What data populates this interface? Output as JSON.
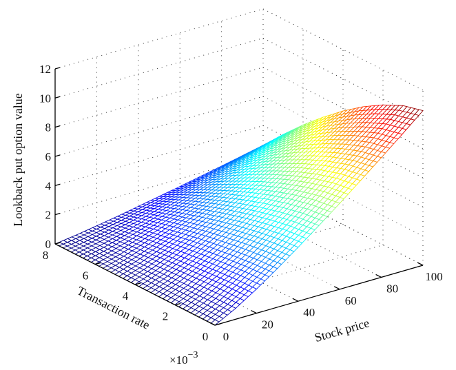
{
  "chart_data": {
    "type": "surface-mesh",
    "title": "",
    "xlabel": "Stock price",
    "ylabel": "Transaction rate",
    "zlabel": "Lookback put option value",
    "y_multiplier_label": "×10",
    "y_multiplier_exponent": "−3",
    "xlim": [
      0,
      100
    ],
    "ylim": [
      0,
      0.008
    ],
    "zlim": [
      0,
      12
    ],
    "x_ticks": [
      "0",
      "20",
      "40",
      "60",
      "80",
      "100"
    ],
    "x_tick_values": [
      0,
      20,
      40,
      60,
      80,
      100
    ],
    "y_ticks": [
      "0",
      "2",
      "4",
      "6",
      "8"
    ],
    "y_tick_values": [
      0,
      2,
      4,
      6,
      8
    ],
    "z_ticks": [
      "0",
      "2",
      "4",
      "6",
      "8",
      "10",
      "12"
    ],
    "z_tick_values": [
      0,
      2,
      4,
      6,
      8,
      10,
      12
    ],
    "grid": true,
    "colormap": "jet",
    "stock_price": [
      0,
      10,
      20,
      30,
      40,
      50,
      60,
      70,
      80,
      90,
      100
    ],
    "transaction_rate_e3": [
      0,
      1,
      2,
      3,
      4,
      5,
      6,
      7,
      8
    ],
    "values": [
      [
        0,
        0.75,
        1.66,
        2.65,
        3.7,
        4.78,
        5.89,
        7.04,
        8.2,
        9.39,
        10.6
      ],
      [
        0,
        0.73,
        1.61,
        2.56,
        3.58,
        4.62,
        5.7,
        6.81,
        7.93,
        9.08,
        10.25
      ],
      [
        0,
        0.68,
        1.5,
        2.4,
        3.35,
        4.33,
        5.34,
        6.38,
        7.43,
        8.51,
        9.6
      ],
      [
        0,
        0.62,
        1.37,
        2.19,
        3.06,
        3.96,
        4.88,
        5.83,
        6.79,
        7.77,
        8.78
      ],
      [
        0,
        0.55,
        1.22,
        1.95,
        2.72,
        3.51,
        4.33,
        5.17,
        6.03,
        6.9,
        7.79
      ],
      [
        0,
        0.47,
        1.04,
        1.67,
        2.33,
        3.01,
        3.7,
        4.43,
        5.16,
        5.91,
        6.67
      ],
      [
        0,
        0.38,
        0.85,
        1.36,
        1.9,
        2.45,
        3.02,
        3.61,
        4.21,
        4.82,
        5.44
      ],
      [
        0,
        0.29,
        0.64,
        1.02,
        1.43,
        1.85,
        2.27,
        2.72,
        3.17,
        3.62,
        4.09
      ],
      [
        0,
        0.19,
        0.42,
        0.66,
        0.93,
        1.2,
        1.47,
        1.76,
        2.05,
        2.35,
        2.65
      ]
    ]
  }
}
